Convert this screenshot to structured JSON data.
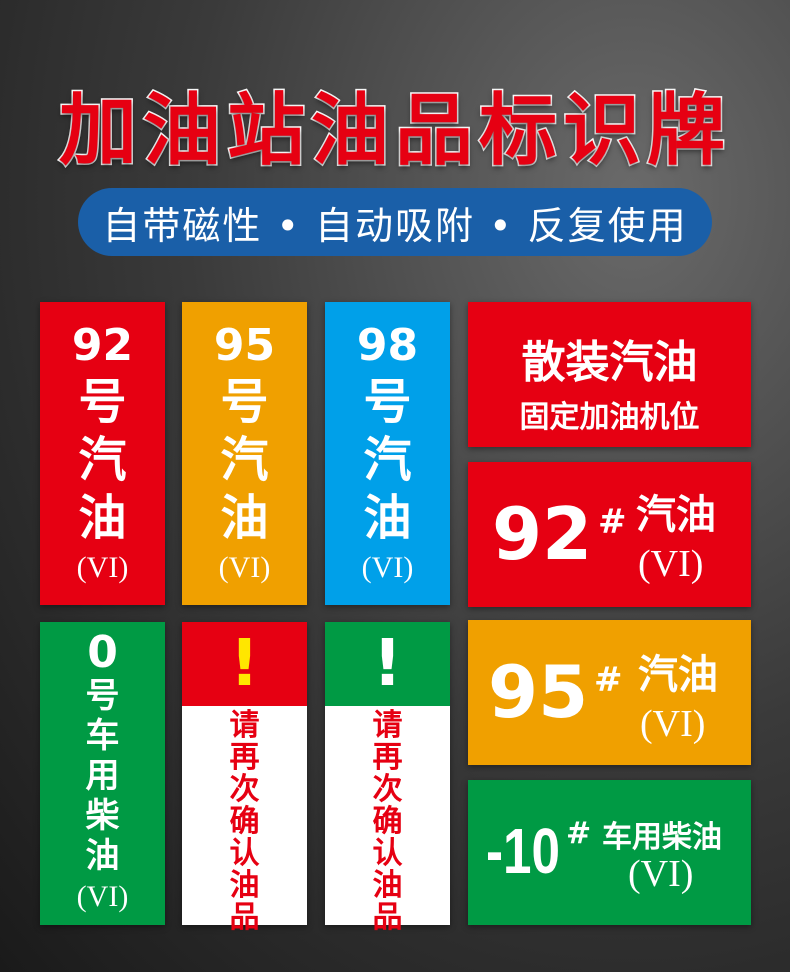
{
  "title": "加油站油品标识牌",
  "subtitle": "自带磁性 • 自动吸附 • 反复使用",
  "cards": {
    "c92": {
      "num": "92",
      "chars": [
        "号",
        "汽",
        "油"
      ],
      "grade": "(VI)"
    },
    "c95": {
      "num": "95",
      "chars": [
        "号",
        "汽",
        "油"
      ],
      "grade": "(VI)"
    },
    "c98": {
      "num": "98",
      "chars": [
        "号",
        "汽",
        "油"
      ],
      "grade": "(VI)"
    },
    "c0": {
      "num": "0",
      "chars": [
        "号",
        "车",
        "用",
        "柴",
        "油"
      ],
      "grade": "(VI)"
    },
    "bulk": {
      "line1": "散装汽油",
      "line2": "固定加油机位"
    },
    "h92": {
      "num": "92",
      "sharp": "#",
      "label": "汽油",
      "grade": "(VI)"
    },
    "h95": {
      "num": "95",
      "sharp": "#",
      "label": "汽油",
      "grade": "(VI)"
    },
    "h10": {
      "num": "-10",
      "sharp": "#",
      "label": "车用柴油",
      "grade": "(VI)"
    },
    "warn1": {
      "mark": "!",
      "chars": [
        "请",
        "再",
        "次",
        "确",
        "认",
        "油",
        "品"
      ]
    },
    "warn2": {
      "mark": "!",
      "chars": [
        "请",
        "再",
        "次",
        "确",
        "认",
        "油",
        "品"
      ]
    }
  },
  "colors": {
    "red": "#e60012",
    "orange": "#f0a000",
    "blue": "#00a0e9",
    "green": "#009a44",
    "pill": "#1a5fa8"
  }
}
